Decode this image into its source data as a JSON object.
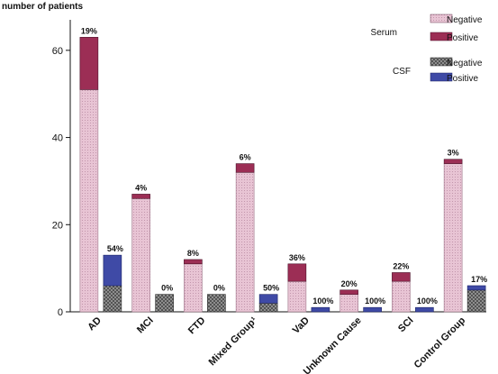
{
  "chart_data": {
    "type": "bar",
    "ylabel": "number of patients",
    "xlabel": "",
    "ylim": [
      0,
      67
    ],
    "yticks": [
      0,
      20,
      40,
      60
    ],
    "grid": false,
    "legend_placement": "top-right",
    "categories": [
      "AD",
      "MCI",
      "FTD",
      "Mixed Group¹",
      "VaD",
      "Unknown Cause",
      "SCI",
      "Control Group"
    ],
    "groups": [
      {
        "name": "Serum",
        "series": [
          {
            "name": "Negative",
            "values": [
              51,
              26,
              11,
              32,
              7,
              4,
              7,
              34
            ],
            "color": "#e8c4d4",
            "pattern": "dots"
          },
          {
            "name": "Positive",
            "values": [
              12,
              1,
              1,
              2,
              4,
              1,
              2,
              1
            ],
            "color": "#9c2e55",
            "pattern": "solid"
          }
        ],
        "percent_labels": [
          "19%",
          "4%",
          "8%",
          "6%",
          "36%",
          "20%",
          "22%",
          "3%"
        ]
      },
      {
        "name": "CSF",
        "series": [
          {
            "name": "Negative",
            "values": [
              6,
              4,
              4,
              2,
              0,
              0,
              0,
              5
            ],
            "color": "#8f8f8f",
            "pattern": "crosshatch"
          },
          {
            "name": "Positive",
            "values": [
              7,
              0,
              0,
              2,
              1,
              1,
              1,
              1
            ],
            "color": "#3f4aa6",
            "pattern": "solid"
          }
        ],
        "percent_labels": [
          "54%",
          "0%",
          "0%",
          "50%",
          "100%",
          "100%",
          "100%",
          "17%"
        ]
      }
    ]
  }
}
